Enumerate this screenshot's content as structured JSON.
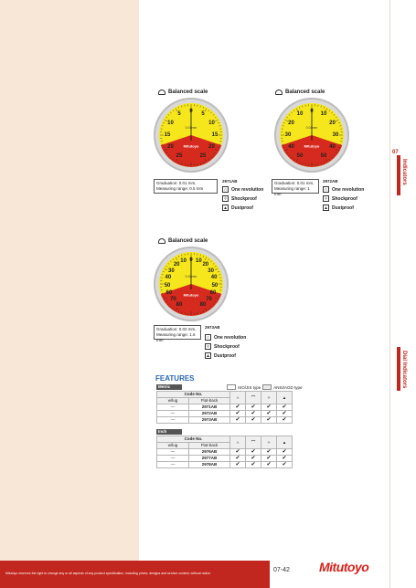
{
  "products": [
    {
      "scale_title": "Balanced scale",
      "dial_numbers": [
        "5",
        "0",
        "5",
        "10",
        "10",
        "15",
        "15",
        "20",
        "20",
        "25",
        "25"
      ],
      "dial_resolution": "0.01mm",
      "spec_line1": "Graduation: 0.01 mm,",
      "spec_line2": "Measuring range: 0.5 mm",
      "code": "2971AB",
      "features": [
        "One revolution",
        "Shockproof",
        "Dustproof"
      ]
    },
    {
      "scale_title": "Balanced scale",
      "dial_numbers": [
        "10",
        "0",
        "10",
        "20",
        "20",
        "30",
        "30",
        "40",
        "40",
        "50",
        "50"
      ],
      "dial_resolution": "0.01mm",
      "spec_line1": "Graduation: 0.01 mm,",
      "spec_line2": "Measuring range: 1 mm",
      "code": "2972AB",
      "features": [
        "One revolution",
        "Shockproof",
        "Dustproof"
      ]
    },
    {
      "scale_title": "Balanced scale",
      "dial_numbers": [
        "10",
        "0",
        "10",
        "20",
        "20",
        "30",
        "30",
        "40",
        "40",
        "50",
        "50",
        "60",
        "60",
        "70",
        "70",
        "80",
        "80"
      ],
      "dial_resolution": "0.02mm",
      "spec_line1": "Graduation: 0.02 mm,",
      "spec_line2": "Measuring range: 1.6 mm",
      "code": "2973AB",
      "features": [
        "One revolution",
        "Shockproof",
        "Dustproof"
      ]
    }
  ],
  "dial_brand": "Mitutoyo",
  "features_section": {
    "title": "FEATURES",
    "legend_iso": "ISO/JIS type",
    "legend_ansi": "ANSI/AGD type",
    "metric_label": "Metric",
    "inch_label": "Inch",
    "code_no_header": "Code No.",
    "col_lug": "w/lug",
    "col_flat": "Flat-back",
    "metric_rows": [
      {
        "lug": "—",
        "flat": "2971AB",
        "checks": [
          "✔",
          "✔",
          "✔",
          "✔"
        ]
      },
      {
        "lug": "—",
        "flat": "2972AB",
        "checks": [
          "✔",
          "✔",
          "✔",
          "✔"
        ]
      },
      {
        "lug": "—",
        "flat": "2973AB",
        "checks": [
          "✔",
          "✔",
          "✔",
          "✔"
        ]
      }
    ],
    "inch_rows": [
      {
        "lug": "—",
        "flat": "2976AB",
        "checks": [
          "✔",
          "✔",
          "✔",
          "✔"
        ]
      },
      {
        "lug": "—",
        "flat": "2977AB",
        "checks": [
          "✔",
          "✔",
          "✔",
          "✔"
        ]
      },
      {
        "lug": "—",
        "flat": "2978AB",
        "checks": [
          "✔",
          "✔",
          "✔",
          "✔"
        ]
      }
    ]
  },
  "side_tabs": {
    "number": "07",
    "indicators": "Indicators",
    "dial_indicators": "Dial Indicators"
  },
  "footer": {
    "note": "Mitutoyo reserves the right to change any or all aspects of any product specification, including prices, designs and service content, without notice.",
    "page": "07-42",
    "logo": "Mitutoyo"
  },
  "colors": {
    "accent_red": "#c1271e",
    "dial_yellow": "#f6e61c",
    "features_blue": "#2a66b3"
  }
}
